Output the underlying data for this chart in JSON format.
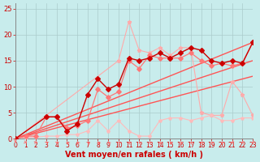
{
  "xlabel": "Vent moyen/en rafales ( km/h )",
  "bg_color": "#c8ecec",
  "grid_color": "#aacccc",
  "xlim": [
    0,
    23
  ],
  "ylim": [
    0,
    26
  ],
  "yticks": [
    0,
    5,
    10,
    15,
    20,
    25
  ],
  "xticks": [
    0,
    1,
    2,
    3,
    4,
    5,
    6,
    7,
    8,
    9,
    10,
    11,
    12,
    13,
    14,
    15,
    16,
    17,
    18,
    19,
    20,
    21,
    22,
    23
  ],
  "trend1_x": [
    0,
    23
  ],
  "trend1_y": [
    0,
    12.0
  ],
  "trend2_x": [
    0,
    23
  ],
  "trend2_y": [
    0,
    15.0
  ],
  "trend3_x": [
    0,
    23
  ],
  "trend3_y": [
    0,
    18.5
  ],
  "trend_color": "#ff5555",
  "dark_line_x": [
    0,
    3,
    4,
    5,
    6,
    7,
    8,
    9,
    10,
    11,
    12,
    13,
    14,
    15,
    16,
    17,
    18,
    19,
    20,
    21,
    22,
    23
  ],
  "dark_line_y": [
    0.0,
    4.2,
    4.2,
    1.5,
    2.8,
    8.5,
    11.5,
    9.5,
    10.5,
    15.5,
    15.0,
    15.5,
    16.5,
    15.5,
    16.5,
    17.5,
    17.0,
    15.0,
    14.5,
    15.0,
    14.5,
    18.5
  ],
  "dark_color": "#cc0000",
  "med_line_x": [
    0,
    1,
    2,
    3,
    4,
    5,
    6,
    7,
    8,
    9,
    10,
    11,
    12,
    13,
    14,
    15,
    16,
    17,
    18,
    19,
    20,
    21,
    22,
    23
  ],
  "med_line_y": [
    0.0,
    0.5,
    0.5,
    4.2,
    4.2,
    2.0,
    2.5,
    3.5,
    9.5,
    8.0,
    9.0,
    15.0,
    13.5,
    16.0,
    15.5,
    15.5,
    15.5,
    16.5,
    15.0,
    14.0,
    14.5,
    14.0,
    14.5,
    18.5
  ],
  "med_color": "#ff7777",
  "light_line_x": [
    0,
    10,
    11,
    12,
    13,
    14,
    15,
    16,
    17,
    18,
    19,
    20,
    21,
    22,
    23
  ],
  "light_line_y": [
    0.0,
    15.0,
    22.5,
    17.0,
    16.5,
    17.5,
    16.0,
    17.5,
    17.5,
    5.0,
    4.5,
    4.5,
    11.0,
    8.5,
    4.5
  ],
  "light_color": "#ffaaaa",
  "bottom_line_x": [
    0,
    1,
    2,
    3,
    4,
    5,
    6,
    7,
    8,
    9,
    10,
    11,
    12,
    13,
    14,
    15,
    16,
    17,
    18,
    19,
    20,
    21,
    22,
    23
  ],
  "bottom_line_y": [
    0.0,
    0.2,
    0.3,
    0.5,
    0.5,
    0.8,
    0.8,
    1.5,
    3.5,
    1.5,
    3.5,
    1.5,
    0.5,
    0.5,
    3.5,
    4.0,
    4.0,
    3.5,
    4.0,
    4.5,
    3.5,
    3.5,
    4.0,
    4.0
  ],
  "bottom_color": "#ffbbbb",
  "arrow_color": "#ff7777"
}
